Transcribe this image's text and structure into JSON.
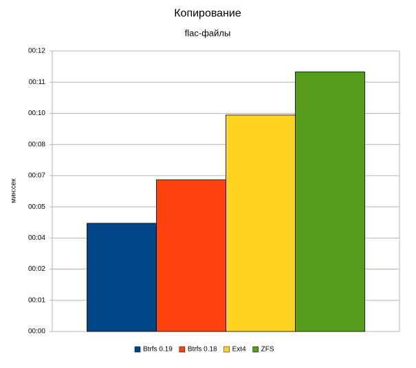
{
  "chart_data": {
    "type": "bar",
    "title": "Копирование",
    "subtitle": "flac-файлы",
    "y_label": "мин:сек",
    "categories": [
      null
    ],
    "series": [
      {
        "name": "Btrfs 0.19",
        "color": "#004586",
        "values": [
          4.63
        ]
      },
      {
        "name": "Btrfs 0.18",
        "color": "#ff420e",
        "values": [
          6.49
        ]
      },
      {
        "name": "Ext4",
        "color": "#ffd320",
        "values": [
          9.26
        ]
      },
      {
        "name": "ZFS",
        "color": "#579d1c",
        "values": [
          11.11
        ]
      }
    ],
    "ylim": [
      0,
      12
    ],
    "yticks": [
      {
        "value": 0,
        "label": "00:00"
      },
      {
        "value": 1.333,
        "label": "00:01"
      },
      {
        "value": 2.667,
        "label": "00:02"
      },
      {
        "value": 4,
        "label": "00:04"
      },
      {
        "value": 5.333,
        "label": "00:05"
      },
      {
        "value": 6.667,
        "label": "00:07"
      },
      {
        "value": 8,
        "label": "00:08"
      },
      {
        "value": 9.333,
        "label": "00:10"
      },
      {
        "value": 10.667,
        "label": "00:11"
      },
      {
        "value": 12,
        "label": "00:12"
      }
    ],
    "grid": true,
    "legend": "bottom"
  }
}
